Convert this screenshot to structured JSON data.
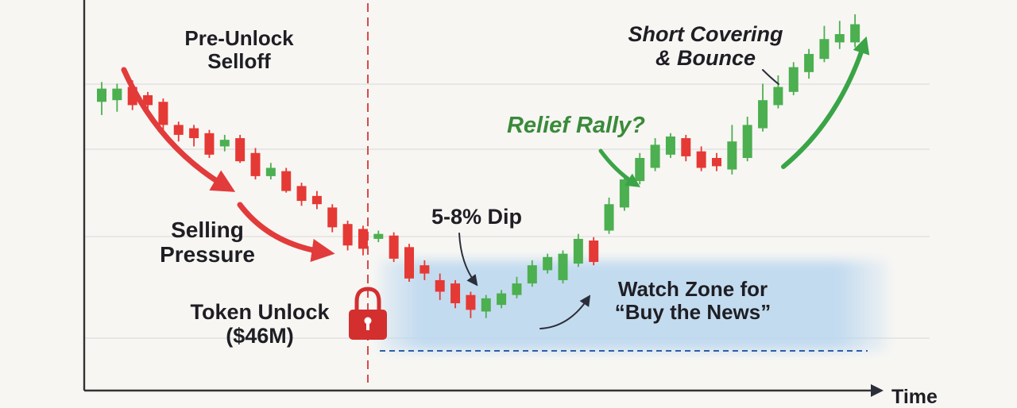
{
  "chart_data": {
    "type": "candlestick",
    "xlabel": "Time",
    "ylabel": "",
    "grid": true,
    "annotations": {
      "pre_unlock": [
        "Pre-Unlock",
        "Selloff"
      ],
      "selling_pressure": [
        "Selling",
        "Pressure"
      ],
      "token_unlock": [
        "Token Unlock",
        "($46M)"
      ],
      "dip": "5-8% Dip",
      "relief_rally": "Relief Rally?",
      "short_covering": [
        "Short Covering",
        "& Bounce"
      ],
      "watch_zone": [
        "Watch Zone for",
        "“Buy the News”"
      ]
    },
    "candles": [
      {
        "o": 84,
        "c": 92,
        "h": 96,
        "l": 76
      },
      {
        "o": 85,
        "c": 92,
        "h": 95,
        "l": 78
      },
      {
        "o": 93,
        "c": 82,
        "h": 97,
        "l": 79
      },
      {
        "o": 88,
        "c": 82,
        "h": 90,
        "l": 79
      },
      {
        "o": 84,
        "c": 70,
        "h": 86,
        "l": 67
      },
      {
        "o": 70,
        "c": 64,
        "h": 72,
        "l": 60
      },
      {
        "o": 68,
        "c": 62,
        "h": 70,
        "l": 57
      },
      {
        "o": 65,
        "c": 52,
        "h": 67,
        "l": 50
      },
      {
        "o": 57,
        "c": 61,
        "h": 64,
        "l": 54
      },
      {
        "o": 62,
        "c": 48,
        "h": 64,
        "l": 47
      },
      {
        "o": 53,
        "c": 39,
        "h": 56,
        "l": 37
      },
      {
        "o": 39,
        "c": 44,
        "h": 47,
        "l": 37
      },
      {
        "o": 42,
        "c": 30,
        "h": 44,
        "l": 29
      },
      {
        "o": 33,
        "c": 24,
        "h": 35,
        "l": 21
      },
      {
        "o": 27,
        "c": 22,
        "h": 30,
        "l": 19
      },
      {
        "o": 20,
        "c": 8,
        "h": 22,
        "l": 5
      },
      {
        "o": 10,
        "c": -3,
        "h": 12,
        "l": -6
      },
      {
        "o": 7,
        "c": -5,
        "h": 9,
        "l": -9
      },
      {
        "o": 1,
        "c": 4,
        "h": 6,
        "l": -1
      },
      {
        "o": 3,
        "c": -11,
        "h": 5,
        "l": -13
      },
      {
        "o": -4,
        "c": -23,
        "h": -2,
        "l": -25
      },
      {
        "o": -15,
        "c": -20,
        "h": -12,
        "l": -24
      },
      {
        "o": -24,
        "c": -31,
        "h": -20,
        "l": -36
      },
      {
        "o": -26,
        "c": -38,
        "h": -24,
        "l": -41
      },
      {
        "o": -33,
        "c": -42,
        "h": -31,
        "l": -47
      },
      {
        "o": -43,
        "c": -35,
        "h": -33,
        "l": -47
      },
      {
        "o": -39,
        "c": -32,
        "h": -30,
        "l": -41
      },
      {
        "o": -33,
        "c": -26,
        "h": -22,
        "l": -35
      },
      {
        "o": -26,
        "c": -15,
        "h": -12,
        "l": -28
      },
      {
        "o": -18,
        "c": -10,
        "h": -8,
        "l": -20
      },
      {
        "o": -24,
        "c": -8,
        "h": -6,
        "l": -26
      },
      {
        "o": -14,
        "c": 1,
        "h": 4,
        "l": -16
      },
      {
        "o": 0,
        "c": -13,
        "h": 2,
        "l": -15
      },
      {
        "o": 6,
        "c": 22,
        "h": 26,
        "l": 4
      },
      {
        "o": 20,
        "c": 37,
        "h": 40,
        "l": 18
      },
      {
        "o": 36,
        "c": 50,
        "h": 53,
        "l": 34
      },
      {
        "o": 44,
        "c": 58,
        "h": 62,
        "l": 42
      },
      {
        "o": 52,
        "c": 63,
        "h": 65,
        "l": 50
      },
      {
        "o": 62,
        "c": 51,
        "h": 64,
        "l": 48
      },
      {
        "o": 54,
        "c": 44,
        "h": 57,
        "l": 42
      },
      {
        "o": 50,
        "c": 45,
        "h": 53,
        "l": 42
      },
      {
        "o": 43,
        "c": 60,
        "h": 70,
        "l": 40
      },
      {
        "o": 50,
        "c": 70,
        "h": 75,
        "l": 48
      },
      {
        "o": 68,
        "c": 85,
        "h": 95,
        "l": 66
      },
      {
        "o": 82,
        "c": 93,
        "h": 100,
        "l": 80
      },
      {
        "o": 90,
        "c": 105,
        "h": 108,
        "l": 88
      },
      {
        "o": 102,
        "c": 113,
        "h": 116,
        "l": 98
      },
      {
        "o": 110,
        "c": 122,
        "h": 130,
        "l": 108
      },
      {
        "o": 120,
        "c": 125,
        "h": 133,
        "l": 116
      },
      {
        "o": 120,
        "c": 131,
        "h": 137,
        "l": 117
      }
    ],
    "colors": {
      "up": "#4caf50",
      "down": "#e53935",
      "marker_line": "#d84a4a",
      "arrow_red": "#e23b3b",
      "arrow_green": "#3aa447",
      "zone_fill": "#b9d6ef",
      "zone_line": "#2c5fa8",
      "axis": "#333333",
      "grid": "#dddddd",
      "text_green": "#3a8a3a"
    },
    "icons": [
      "lock-icon"
    ]
  }
}
